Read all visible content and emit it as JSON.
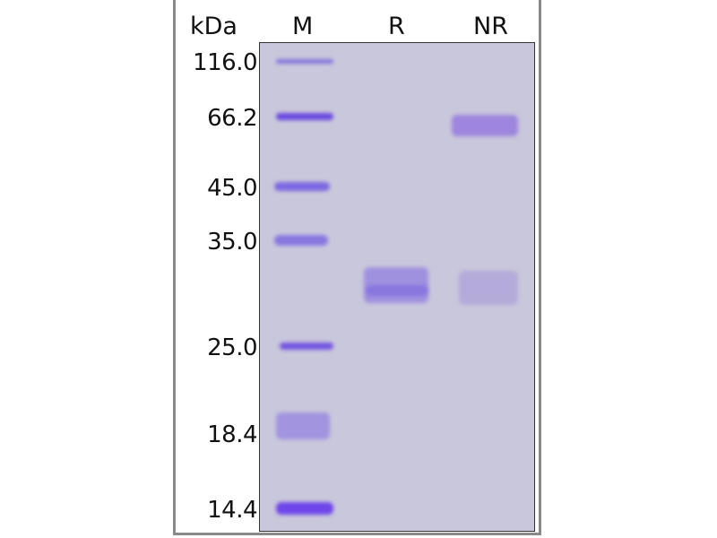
{
  "header": {
    "unit_label": "kDa"
  },
  "lanes": [
    {
      "label": "M"
    },
    {
      "label": "R"
    },
    {
      "label": "NR"
    }
  ],
  "markers": [
    "116.0",
    "66.2",
    "45.0",
    "35.0",
    "25.0",
    "18.4",
    "14.4"
  ],
  "colors": {
    "gel_background": "#c9c7dc",
    "band_stain": "#6a4fe0"
  }
}
